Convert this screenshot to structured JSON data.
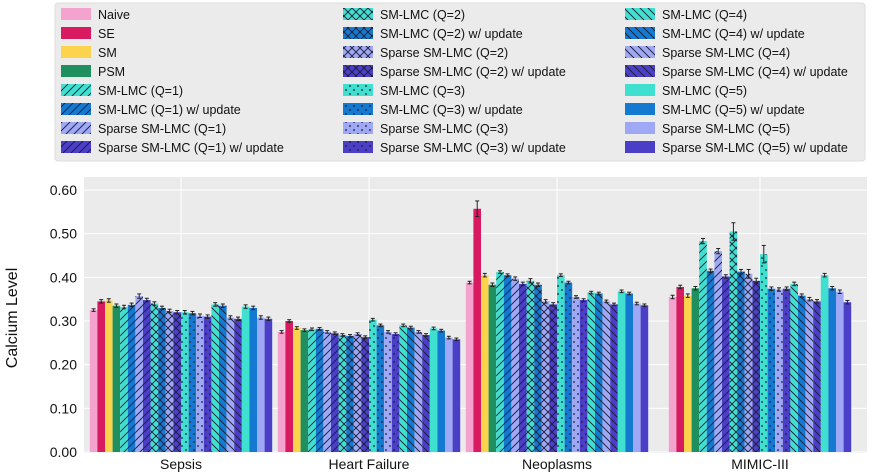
{
  "chart_data": {
    "type": "bar",
    "ylabel": "Calcium Level",
    "xlabel": "",
    "ylim": [
      0,
      0.6
    ],
    "yticks": [
      "0.00",
      "0.10",
      "0.20",
      "0.30",
      "0.40",
      "0.50",
      "0.60"
    ],
    "grid": true,
    "legend_position": "top",
    "categories": [
      "Sepsis",
      "Heart Failure",
      "Neoplasms",
      "MIMIC-III"
    ],
    "series": [
      {
        "name": "Naive",
        "color": "#f4a3cf",
        "pattern": "none",
        "values": [
          0.325,
          0.275,
          0.388,
          0.355
        ],
        "errors": [
          0.003,
          0.003,
          0.003,
          0.004
        ]
      },
      {
        "name": "SE",
        "color": "#d81b60",
        "pattern": "none",
        "values": [
          0.345,
          0.3,
          0.557,
          0.378
        ],
        "errors": [
          0.004,
          0.003,
          0.018,
          0.004
        ]
      },
      {
        "name": "SM",
        "color": "#fcd34d",
        "pattern": "none",
        "values": [
          0.347,
          0.284,
          0.405,
          0.358
        ],
        "errors": [
          0.004,
          0.003,
          0.004,
          0.004
        ]
      },
      {
        "name": "PSM",
        "color": "#1f8f5f",
        "pattern": "none",
        "values": [
          0.335,
          0.279,
          0.383,
          0.375
        ],
        "errors": [
          0.004,
          0.003,
          0.004,
          0.004
        ]
      },
      {
        "name": "SM-LMC (Q=1)",
        "color": "#40e0d0",
        "pattern": "diag",
        "values": [
          0.332,
          0.281,
          0.412,
          0.483
        ],
        "errors": [
          0.004,
          0.003,
          0.003,
          0.006
        ]
      },
      {
        "name": "SM-LMC (Q=1) w/ update",
        "color": "#1479d1",
        "pattern": "diag",
        "values": [
          0.337,
          0.282,
          0.405,
          0.415
        ],
        "errors": [
          0.004,
          0.003,
          0.003,
          0.004
        ]
      },
      {
        "name": "Sparse SM-LMC (Q=1)",
        "color": "#9fa8f5",
        "pattern": "diag",
        "values": [
          0.357,
          0.275,
          0.397,
          0.46
        ],
        "errors": [
          0.005,
          0.003,
          0.004,
          0.006
        ]
      },
      {
        "name": "Sparse SM-LMC (Q=1) w/ update",
        "color": "#4b3fc8",
        "pattern": "diag",
        "values": [
          0.348,
          0.272,
          0.385,
          0.402
        ],
        "errors": [
          0.004,
          0.003,
          0.004,
          0.004
        ]
      },
      {
        "name": "SM-LMC (Q=2)",
        "color": "#40e0d0",
        "pattern": "cross",
        "values": [
          0.34,
          0.268,
          0.392,
          0.505
        ],
        "errors": [
          0.004,
          0.003,
          0.005,
          0.02
        ]
      },
      {
        "name": "SM-LMC (Q=2) w/ update",
        "color": "#1479d1",
        "pattern": "cross",
        "values": [
          0.33,
          0.266,
          0.383,
          0.413
        ],
        "errors": [
          0.004,
          0.003,
          0.004,
          0.005
        ]
      },
      {
        "name": "Sparse SM-LMC (Q=2)",
        "color": "#9fa8f5",
        "pattern": "cross",
        "values": [
          0.323,
          0.27,
          0.345,
          0.408
        ],
        "errors": [
          0.004,
          0.003,
          0.004,
          0.01
        ]
      },
      {
        "name": "Sparse SM-LMC (Q=2) w/ update",
        "color": "#4b3fc8",
        "pattern": "cross",
        "values": [
          0.32,
          0.263,
          0.338,
          0.392
        ],
        "errors": [
          0.004,
          0.003,
          0.004,
          0.006
        ]
      },
      {
        "name": "SM-LMC (Q=3)",
        "color": "#40e0d0",
        "pattern": "dots",
        "values": [
          0.32,
          0.303,
          0.405,
          0.453
        ],
        "errors": [
          0.004,
          0.003,
          0.003,
          0.02
        ]
      },
      {
        "name": "SM-LMC (Q=3) w/ update",
        "color": "#1479d1",
        "pattern": "dots",
        "values": [
          0.318,
          0.29,
          0.388,
          0.374
        ],
        "errors": [
          0.004,
          0.003,
          0.003,
          0.004
        ]
      },
      {
        "name": "Sparse SM-LMC (Q=3)",
        "color": "#9fa8f5",
        "pattern": "dots",
        "values": [
          0.312,
          0.275,
          0.355,
          0.372
        ],
        "errors": [
          0.004,
          0.003,
          0.003,
          0.004
        ]
      },
      {
        "name": "Sparse SM-LMC (Q=3) w/ update",
        "color": "#4b3fc8",
        "pattern": "dots",
        "values": [
          0.31,
          0.27,
          0.348,
          0.374
        ],
        "errors": [
          0.004,
          0.003,
          0.003,
          0.004
        ]
      },
      {
        "name": "SM-LMC (Q=4)",
        "color": "#40e0d0",
        "pattern": "back",
        "values": [
          0.338,
          0.29,
          0.365,
          0.385
        ],
        "errors": [
          0.004,
          0.003,
          0.003,
          0.004
        ]
      },
      {
        "name": "SM-LMC (Q=4) w/ update",
        "color": "#1479d1",
        "pattern": "back",
        "values": [
          0.335,
          0.285,
          0.363,
          0.358
        ],
        "errors": [
          0.004,
          0.003,
          0.003,
          0.004
        ]
      },
      {
        "name": "Sparse SM-LMC (Q=4)",
        "color": "#9fa8f5",
        "pattern": "back",
        "values": [
          0.308,
          0.275,
          0.345,
          0.35
        ],
        "errors": [
          0.004,
          0.003,
          0.003,
          0.004
        ]
      },
      {
        "name": "Sparse SM-LMC (Q=4) w/ update",
        "color": "#4b3fc8",
        "pattern": "back",
        "values": [
          0.305,
          0.268,
          0.338,
          0.345
        ],
        "errors": [
          0.004,
          0.003,
          0.003,
          0.004
        ]
      },
      {
        "name": "SM-LMC (Q=5)",
        "color": "#40e0d0",
        "pattern": "none",
        "values": [
          0.333,
          0.283,
          0.368,
          0.405
        ],
        "errors": [
          0.004,
          0.003,
          0.003,
          0.004
        ]
      },
      {
        "name": "SM-LMC (Q=5) w/ update",
        "color": "#1479d1",
        "pattern": "none",
        "values": [
          0.33,
          0.278,
          0.363,
          0.375
        ],
        "errors": [
          0.004,
          0.003,
          0.003,
          0.004
        ]
      },
      {
        "name": "Sparse SM-LMC (Q=5)",
        "color": "#9fa8f5",
        "pattern": "none",
        "values": [
          0.308,
          0.262,
          0.34,
          0.367
        ],
        "errors": [
          0.004,
          0.003,
          0.003,
          0.004
        ]
      },
      {
        "name": "Sparse SM-LMC (Q=5) w/ update",
        "color": "#4b3fc8",
        "pattern": "none",
        "values": [
          0.305,
          0.258,
          0.336,
          0.343
        ],
        "errors": [
          0.004,
          0.003,
          0.003,
          0.004
        ]
      }
    ]
  }
}
